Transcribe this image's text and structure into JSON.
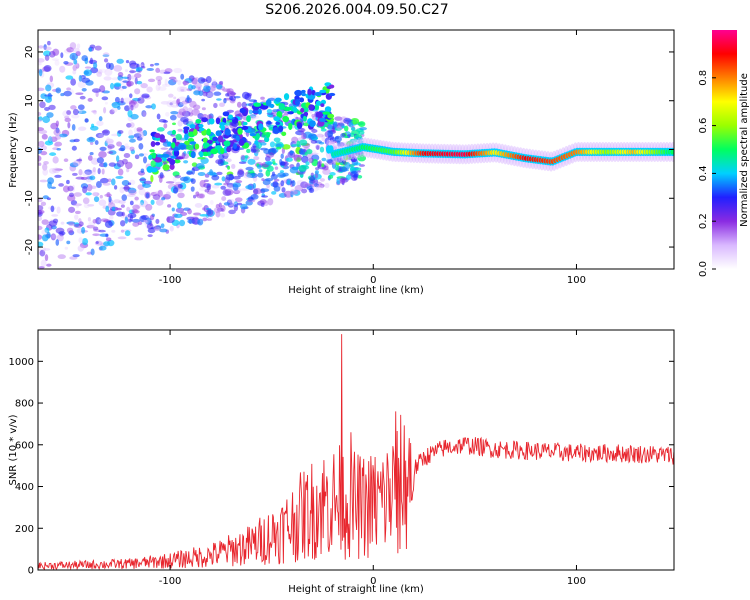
{
  "chart_data": [
    {
      "type": "heatmap",
      "title": "S206.2026.004.09.50.C27",
      "xlabel": "Height of straight line (km)",
      "ylabel": "Frequency (Hz)",
      "xlim": [
        -165,
        148
      ],
      "ylim": [
        -24.5,
        24.5
      ],
      "x_ticks": [
        -100,
        0,
        100
      ],
      "y_ticks": [
        -20,
        -10,
        0,
        10,
        20
      ],
      "colorbar": {
        "label": "Normalized spectral amplitude",
        "range": [
          0,
          1
        ],
        "ticks": [
          "0.0",
          "0.2",
          "0.4",
          "0.6",
          "0.8"
        ],
        "colors": [
          "#ffffff",
          "#d9b8ff",
          "#8a2be2",
          "#2020ff",
          "#00d0ff",
          "#00ff60",
          "#9aff00",
          "#ffff00",
          "#ff8000",
          "#ff0000",
          "#ff0090"
        ]
      },
      "features": {
        "coherent_band": {
          "description_free_note": "",
          "segments": [
            {
              "x": -20,
              "y": -1.0,
              "amp": 0.45
            },
            {
              "x": -5,
              "y": 0.5,
              "amp": 0.5
            },
            {
              "x": 10,
              "y": -0.5,
              "amp": 0.55
            },
            {
              "x": 25,
              "y": -0.8,
              "amp": 0.9
            },
            {
              "x": 45,
              "y": -1.0,
              "amp": 0.95
            },
            {
              "x": 60,
              "y": -0.6,
              "amp": 0.7
            },
            {
              "x": 75,
              "y": -1.8,
              "amp": 0.9
            },
            {
              "x": 88,
              "y": -2.5,
              "amp": 0.85
            },
            {
              "x": 100,
              "y": -0.5,
              "amp": 0.8
            },
            {
              "x": 115,
              "y": -0.5,
              "amp": 0.6
            },
            {
              "x": 128,
              "y": -0.5,
              "amp": 0.75
            },
            {
              "x": 145,
              "y": -0.5,
              "amp": 0.5
            }
          ]
        },
        "noisy_region_x": [
          -165,
          -20
        ]
      }
    },
    {
      "type": "line",
      "xlabel": "Height of straight line (km)",
      "ylabel": "SNR (10 * v/v)",
      "xlim": [
        -165,
        148
      ],
      "ylim": [
        0,
        1150
      ],
      "x_ticks": [
        -100,
        0,
        100
      ],
      "y_ticks": [
        0,
        200,
        400,
        600,
        800,
        1000
      ],
      "color": "#e8262e",
      "envelope": {
        "x": [
          -165,
          -140,
          -120,
          -100,
          -80,
          -60,
          -45,
          -35,
          -25,
          -15,
          -5,
          5,
          15,
          25,
          35,
          45,
          60,
          80,
          100,
          120,
          148
        ],
        "y": [
          20,
          25,
          30,
          45,
          70,
          120,
          190,
          260,
          320,
          330,
          300,
          330,
          420,
          540,
          585,
          600,
          580,
          570,
          560,
          560,
          550
        ]
      },
      "spikes": [
        {
          "x": -15.5,
          "y": 1130
        },
        {
          "x": -11,
          "y": 660
        },
        {
          "x": 11,
          "y": 760
        },
        {
          "x": 12,
          "y": 80
        }
      ]
    }
  ]
}
